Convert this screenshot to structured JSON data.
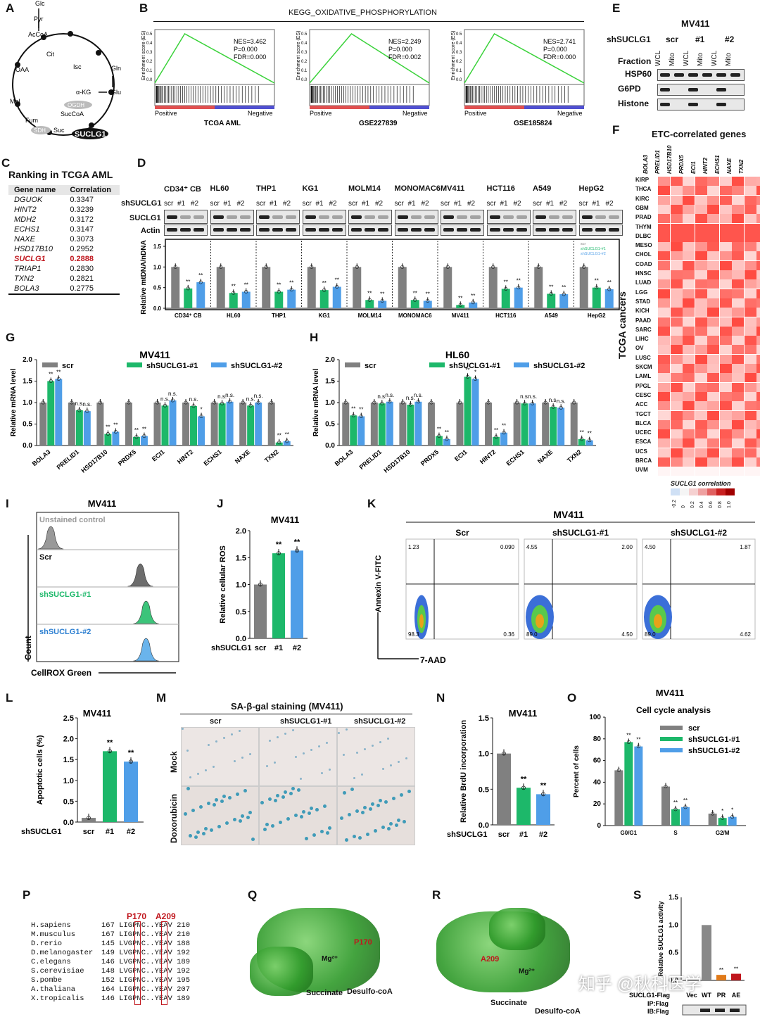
{
  "panels": {
    "A": {
      "label": "A",
      "metabolites": [
        "Glc",
        "Pyr",
        "AcCoA",
        "Cit",
        "Isc",
        "α-KG",
        "SucCoA",
        "Suc",
        "Fum",
        "Mal",
        "OAA",
        "Gln",
        "Glu"
      ],
      "enzymes": [
        "OGDH",
        "SDH",
        "SUCLG1"
      ]
    },
    "B": {
      "label": "B",
      "title": "KEGG_OXIDATIVE_PHOSPHORYLATION",
      "plots": [
        {
          "name": "TCGA AML",
          "nes": "NES=3.462",
          "p": "P=0.000",
          "fdr": "FDR=0.000"
        },
        {
          "name": "GSE227839",
          "nes": "NES=2.249",
          "p": "P=0.000",
          "fdr": "FDR=0.002"
        },
        {
          "name": "GSE185824",
          "nes": "NES=2.741",
          "p": "P=0.000",
          "fdr": "FDR=0.000"
        }
      ],
      "ylabel": "Enrichment score (ES)",
      "pos": "Positive",
      "neg": "Negative",
      "yticks": [
        "0.5",
        "0.4",
        "0.3",
        "0.2",
        "0.1",
        "0.0"
      ]
    },
    "C": {
      "label": "C",
      "title": "Ranking in TCGA AML",
      "col1": "Gene name",
      "col2": "Correlation",
      "rows": [
        [
          "DGUOK",
          "0.3347"
        ],
        [
          "HINT2",
          "0.3239"
        ],
        [
          "MDH2",
          "0.3172"
        ],
        [
          "ECHS1",
          "0.3147"
        ],
        [
          "NAXE",
          "0.3073"
        ],
        [
          "HSD17B10",
          "0.2952"
        ],
        [
          "SUCLG1",
          "0.2888"
        ],
        [
          "TRIAP1",
          "0.2830"
        ],
        [
          "TXN2",
          "0.2821"
        ],
        [
          "BOLA3",
          "0.2775"
        ]
      ]
    },
    "D": {
      "label": "D",
      "cells": [
        "CD34⁺ CB",
        "HL60",
        "THP1",
        "KG1",
        "MOLM14",
        "MONOMAC6",
        "MV411",
        "HCT116",
        "A549",
        "HepG2"
      ],
      "lanes": [
        "scr",
        "#1",
        "#2"
      ],
      "sh": "shSUCLG1",
      "blot1": "SUCLG1",
      "blot2": "Actin",
      "ylabel": "Relative mtDNA/nDNA",
      "xlabels": [
        "CD34⁺ CB",
        "HL60",
        "THP1",
        "KG1",
        "MOLM14",
        "MONOMAC6",
        "MV411",
        "HCT116",
        "A549",
        "HepG2"
      ],
      "legend": [
        "scr",
        "shSUCLG1-#1",
        "shSUCLG1-#2"
      ],
      "yticks": [
        "0.0",
        "0.5",
        "1.0",
        "1.5"
      ],
      "sig": "**"
    },
    "E": {
      "label": "E",
      "cell": "MV411",
      "sh": "shSUCLG1",
      "groups": [
        "scr",
        "#1",
        "#2"
      ],
      "fraction": "Fraction",
      "frac": [
        "WCL",
        "Mito"
      ],
      "rows": [
        "HSP60",
        "G6PD",
        "Histone"
      ]
    },
    "F": {
      "label": "F",
      "title": "ETC-correlated genes",
      "genes": [
        "BOLA3",
        "PRELID1",
        "HSD17B10",
        "PRDX5",
        "ECI1",
        "HINT2",
        "ECHS1",
        "NAXE",
        "TXN2"
      ],
      "cancers": [
        "KIRP",
        "THCA",
        "KIRC",
        "GBM",
        "PRAD",
        "THYM",
        "DLBC",
        "MESO",
        "CHOL",
        "COAD",
        "HNSC",
        "LUAD",
        "LGG",
        "STAD",
        "KICH",
        "PAAD",
        "SARC",
        "LIHC",
        "OV",
        "LUSC",
        "SKCM",
        "LAML",
        "PPGL",
        "CESC",
        "ACC",
        "TGCT",
        "BLCA",
        "UCEC",
        "ESCA",
        "UCS",
        "BRCA",
        "UVM"
      ],
      "ylabel": "TCGA cancers",
      "legend_title": "SUCLG1 correlation",
      "legend_ticks": [
        "-0.2",
        "0",
        "0.2",
        "0.4",
        "0.6",
        "0.8",
        "1.0"
      ]
    },
    "G": {
      "label": "G",
      "title": "MV411",
      "ylabel": "Relative mRNA level",
      "legend": [
        "scr",
        "shSUCLG1-#1",
        "shSUCLG1-#2"
      ],
      "yticks": [
        "0.0",
        "0.5",
        "1.0",
        "1.5",
        "2.0"
      ]
    },
    "H": {
      "label": "H",
      "title": "HL60",
      "ylabel": "Relative mRNA level",
      "legend": [
        "scr",
        "shSUCLG1-#1",
        "shSUCLG1-#2"
      ],
      "yticks": [
        "0.0",
        "0.5",
        "1.0",
        "1.5",
        "2.0"
      ]
    },
    "I": {
      "label": "I",
      "title": "MV411",
      "tracks": [
        "Unstained control",
        "Scr",
        "shSUCLG1-#1",
        "shSUCLG1-#2"
      ],
      "ylabel": "Count",
      "xlabel": "CellROX Green"
    },
    "J": {
      "label": "J",
      "title": "MV411",
      "ylabel": "Relative cellular ROS",
      "sh": "shSUCLG1",
      "cats": [
        "scr",
        "#1",
        "#2"
      ],
      "yticks": [
        "0.0",
        "0.5",
        "1.0",
        "1.5",
        "2.0"
      ]
    },
    "K": {
      "label": "K",
      "title": "MV411",
      "plots": [
        {
          "name": "Scr",
          "ul": "1.23",
          "ur": "0.090",
          "ll": "98.3",
          "lr": "0.36"
        },
        {
          "name": "shSUCLG1-#1",
          "ul": "4.55",
          "ur": "2.00",
          "ll": "89.0",
          "lr": "4.50"
        },
        {
          "name": "shSUCLG1-#2",
          "ul": "4.50",
          "ur": "1.87",
          "ll": "89.0",
          "lr": "4.62"
        }
      ],
      "ylabel": "Annexin V-FITC",
      "xlabel": "7-AAD"
    },
    "L": {
      "label": "L",
      "title": "MV411",
      "ylabel": "Apoptotic cells (%)",
      "sh": "shSUCLG1",
      "cats": [
        "scr",
        "#1",
        "#2"
      ],
      "yticks": [
        "0.0",
        "0.5",
        "1.0",
        "1.5",
        "2.0",
        "2.5"
      ]
    },
    "M": {
      "label": "M",
      "title": "SA-β-gal staining (MV411)",
      "cols": [
        "scr",
        "shSUCLG1-#1",
        "shSUCLG1-#2"
      ],
      "rows": [
        "Mock",
        "Doxorubicin"
      ]
    },
    "N": {
      "label": "N",
      "title": "MV411",
      "ylabel": "Relative BrdU incorporation",
      "sh": "shSUCLG1",
      "cats": [
        "scr",
        "#1",
        "#2"
      ],
      "yticks": [
        "0.0",
        "0.5",
        "1.0",
        "1.5"
      ]
    },
    "O": {
      "label": "O",
      "title": "MV411",
      "subtitle": "Cell cycle analysis",
      "ylabel": "Percent of cells",
      "cats": [
        "G0/G1",
        "S",
        "G2/M"
      ],
      "legend": [
        "scr",
        "shSUCLG1-#1",
        "shSUCLG1-#2"
      ],
      "yticks": [
        "0",
        "20",
        "40",
        "60",
        "80",
        "100"
      ]
    },
    "P": {
      "label": "P",
      "marks": [
        "P170",
        "A209"
      ],
      "species": [
        [
          "H.sapiens",
          "167 LIGPNC..YEAV 210"
        ],
        [
          "M.musculus",
          "167 LIGPNC..YEAV 210"
        ],
        [
          "D.rerio",
          "145 LVGPNC..YEAV 188"
        ],
        [
          "D.melanogaster",
          "149 LVGPNC..YEAV 192"
        ],
        [
          "C.elegans",
          "146 LVGPNC..YEAV 189"
        ],
        [
          "S.cerevisiae",
          "148 LVGPNC..YEAV 192"
        ],
        [
          "S.pombe",
          "152 LIGPNC..YEAV 195"
        ],
        [
          "A.thaliana",
          "164 LIGPNC..YEAV 207"
        ],
        [
          "X.tropicalis",
          "146 LIGPNC..YEAV 189"
        ]
      ]
    },
    "Q": {
      "label": "Q",
      "site": "P170",
      "mg": "Mg²⁺",
      "lig1": "Succinate",
      "lig2": "Desulfo-coA"
    },
    "R": {
      "label": "R",
      "site": "A209",
      "mg": "Mg²⁺",
      "lig1": "Succinate",
      "lig2": "Desulfo-coA"
    },
    "S": {
      "label": "S",
      "ylabel": "Relative SUCLG1 activity",
      "rowlabel": "SUCLG1-Flag",
      "cats": [
        "Vec",
        "WT",
        "PR",
        "AE"
      ],
      "ip": "IP:Flag",
      "ib": "IB:Flag",
      "yticks": [
        "0.0",
        "0.5",
        "1.0",
        "1.5"
      ]
    }
  },
  "watermark": "知乎 @秋科医学",
  "chart_data": [
    {
      "type": "bar",
      "panel": "D",
      "title": "Relative mtDNA/nDNA",
      "categories": [
        "CD34⁺ CB",
        "HL60",
        "THP1",
        "KG1",
        "MOLM14",
        "MONOMAC6",
        "MV411",
        "HCT116",
        "A549",
        "HepG2"
      ],
      "series": [
        {
          "name": "scr",
          "values": [
            1.0,
            1.0,
            1.0,
            1.0,
            1.0,
            1.0,
            1.0,
            1.0,
            1.0,
            1.0
          ]
        },
        {
          "name": "shSUCLG1-#1",
          "values": [
            0.48,
            0.37,
            0.4,
            0.44,
            0.2,
            0.2,
            0.08,
            0.47,
            0.35,
            0.5
          ]
        },
        {
          "name": "shSUCLG1-#2",
          "values": [
            0.63,
            0.4,
            0.45,
            0.52,
            0.18,
            0.18,
            0.14,
            0.5,
            0.34,
            0.46
          ]
        }
      ],
      "ylim": [
        0,
        1.5
      ]
    },
    {
      "type": "bar",
      "panel": "G",
      "title": "MV411",
      "categories": [
        "BOLA3",
        "PRELID1",
        "HSD17B10",
        "PRDX5",
        "ECI1",
        "HINT2",
        "ECHS1",
        "NAXE",
        "TXN2"
      ],
      "series": [
        {
          "name": "scr",
          "values": [
            1.0,
            1.0,
            1.0,
            1.0,
            1.0,
            1.0,
            1.0,
            1.0,
            1.0
          ]
        },
        {
          "name": "shSUCLG1-#1",
          "values": [
            1.5,
            0.82,
            0.27,
            0.2,
            0.93,
            0.92,
            0.98,
            0.93,
            0.07
          ]
        },
        {
          "name": "shSUCLG1-#2",
          "values": [
            1.55,
            0.8,
            0.32,
            0.22,
            1.05,
            0.68,
            1.02,
            1.0,
            0.1
          ]
        }
      ],
      "sig1": [
        "**",
        "n.s.",
        "**",
        "**",
        "n.s.",
        "n.s.",
        "n.s.",
        "n.s.",
        "**"
      ],
      "sig2": [
        "**",
        "n.s.",
        "**",
        "**",
        "n.s.",
        "*",
        "n.s.",
        "n.s.",
        "**"
      ],
      "ylim": [
        0,
        2.0
      ]
    },
    {
      "type": "bar",
      "panel": "H",
      "title": "HL60",
      "categories": [
        "BOLA3",
        "PRELID1",
        "HSD17B10",
        "PRDX5",
        "ECI1",
        "HINT2",
        "ECHS1",
        "NAXE",
        "TXN2"
      ],
      "series": [
        {
          "name": "scr",
          "values": [
            1.0,
            1.0,
            1.0,
            1.0,
            1.0,
            1.0,
            1.0,
            1.0,
            1.0
          ]
        },
        {
          "name": "shSUCLG1-#1",
          "values": [
            0.7,
            0.98,
            0.95,
            0.22,
            1.6,
            0.2,
            0.98,
            0.9,
            0.15
          ]
        },
        {
          "name": "shSUCLG1-#2",
          "values": [
            0.68,
            1.02,
            1.02,
            0.15,
            1.55,
            0.3,
            0.98,
            0.88,
            0.12
          ]
        }
      ],
      "sig1": [
        "**",
        "n.s.",
        "n.s.",
        "**",
        "**",
        "**",
        "n.s.",
        "n.s.",
        "**"
      ],
      "sig2": [
        "**",
        "n.s.",
        "n.s.",
        "**",
        "*",
        "**",
        "n.s.",
        "n.s.",
        "**"
      ],
      "ylim": [
        0,
        2.0
      ]
    },
    {
      "type": "bar",
      "panel": "J",
      "title": "MV411",
      "categories": [
        "scr",
        "#1",
        "#2"
      ],
      "values": [
        1.0,
        1.58,
        1.63
      ],
      "sig": [
        "",
        "**",
        "**"
      ],
      "ylim": [
        0,
        2.0
      ]
    },
    {
      "type": "bar",
      "panel": "L",
      "title": "MV411",
      "categories": [
        "scr",
        "#1",
        "#2"
      ],
      "values": [
        0.1,
        1.7,
        1.45
      ],
      "sig": [
        "",
        "**",
        "**"
      ],
      "ylim": [
        0,
        2.5
      ]
    },
    {
      "type": "bar",
      "panel": "N",
      "title": "MV411",
      "categories": [
        "scr",
        "#1",
        "#2"
      ],
      "values": [
        1.0,
        0.52,
        0.43
      ],
      "sig": [
        "",
        "**",
        "**"
      ],
      "ylim": [
        0,
        1.5
      ]
    },
    {
      "type": "bar",
      "panel": "O",
      "title": "Cell cycle analysis",
      "categories": [
        "G0/G1",
        "S",
        "G2/M"
      ],
      "series": [
        {
          "name": "scr",
          "values": [
            51,
            36,
            11
          ]
        },
        {
          "name": "shSUCLG1-#1",
          "values": [
            77,
            15,
            7
          ]
        },
        {
          "name": "shSUCLG1-#2",
          "values": [
            73,
            17,
            8
          ]
        }
      ],
      "sig1": [
        "**",
        "**",
        "*"
      ],
      "sig2": [
        "**",
        "**",
        "*"
      ],
      "ylim": [
        0,
        100
      ]
    },
    {
      "type": "bar",
      "panel": "S",
      "title": "Relative SUCLG1 activity",
      "categories": [
        "Vec",
        "WT",
        "PR",
        "AE"
      ],
      "values": [
        0.0,
        1.0,
        0.1,
        0.12
      ],
      "sig": [
        "",
        "",
        "**",
        "**"
      ],
      "ylim": [
        0,
        1.5
      ]
    }
  ]
}
